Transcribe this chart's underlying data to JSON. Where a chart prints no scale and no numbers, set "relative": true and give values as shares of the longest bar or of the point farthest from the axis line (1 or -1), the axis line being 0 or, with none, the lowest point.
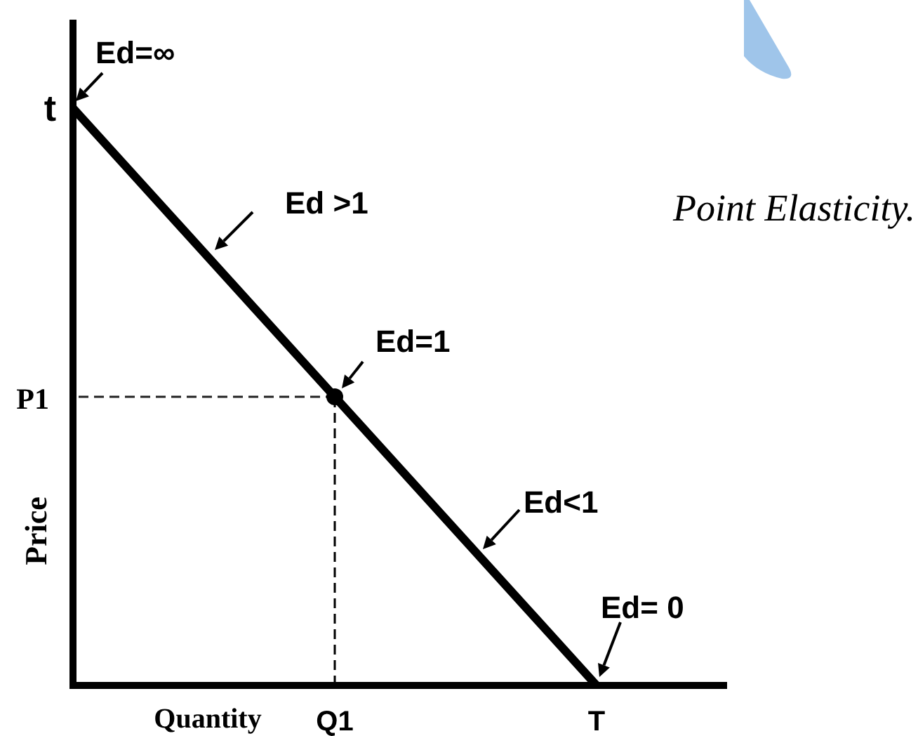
{
  "chart_data": {
    "type": "line",
    "title": "Point Elasticity.",
    "xlabel": "Quantity",
    "ylabel": "Price",
    "relative": true,
    "categories": [
      null,
      "Q1",
      "T"
    ],
    "series": [
      {
        "color": "#000000",
        "values": [
          1,
          0.5,
          0
        ]
      },
      {
        "color": "#222222",
        "values": [
          0.5,
          0.5,
          null
        ],
        "line_style": "dashed"
      },
      {
        "type": "lollipop",
        "color": "#000000",
        "values": [
          null,
          0.5,
          null
        ],
        "line_style": "dashed",
        "marker": "circle"
      }
    ],
    "annotations": [
      "t",
      "P1",
      "Ed=∞",
      "Ed >1",
      {
        "text": "Ed=1",
        "x": "Q1",
        "y": 0.5
      },
      "Ed<1",
      {
        "text": "Ed= 0",
        "x": "T",
        "y": 0
      }
    ]
  }
}
